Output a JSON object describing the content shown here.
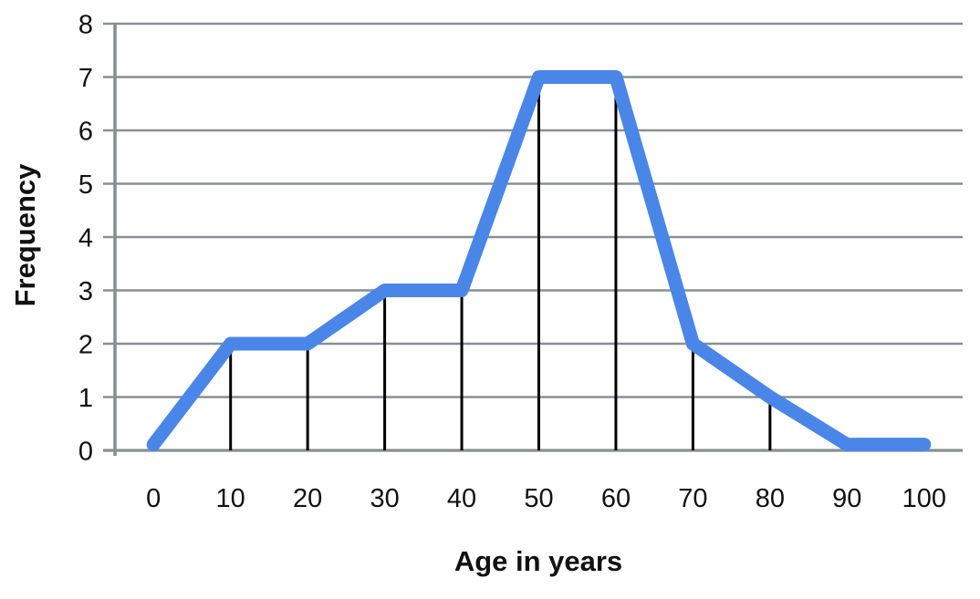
{
  "chart_data": {
    "type": "line",
    "title": "",
    "xlabel": "Age in years",
    "ylabel": "Frequency",
    "categories": [
      0,
      10,
      20,
      30,
      40,
      50,
      60,
      70,
      80,
      90,
      100
    ],
    "values": [
      0,
      2,
      2,
      3,
      3,
      7,
      7,
      2,
      1,
      0,
      0
    ],
    "x_tick_labels": [
      "0",
      "10",
      "20",
      "30",
      "40",
      "50",
      "60",
      "70",
      "80",
      "90",
      "100"
    ],
    "y_tick_labels": [
      "0",
      "1",
      "2",
      "3",
      "4",
      "5",
      "6",
      "7",
      "8"
    ],
    "ylim": [
      0,
      8
    ],
    "grid": "horizontal",
    "legend_position": "none",
    "drop_lines_at_categories": [
      10,
      20,
      30,
      40,
      50,
      60,
      70,
      80
    ],
    "colors": {
      "line": "#4a86e8",
      "gridline": "#869093",
      "axis_line": "#869093",
      "drop_line": "#000000",
      "text": "#111111"
    }
  }
}
